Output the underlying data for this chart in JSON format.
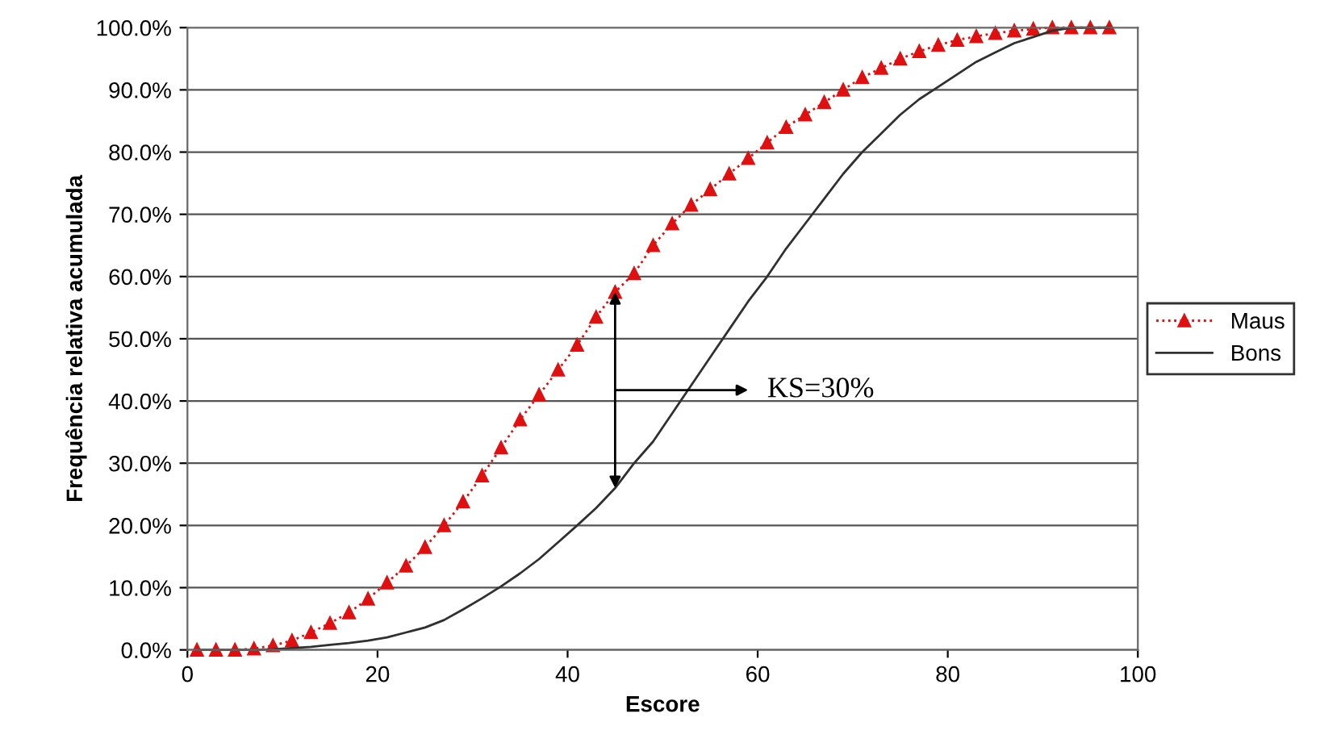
{
  "chart_data": {
    "type": "line",
    "xlabel": "Escore",
    "ylabel": "Frequência relativa acumulada",
    "x": [
      1,
      3,
      5,
      7,
      9,
      11,
      13,
      15,
      17,
      19,
      21,
      23,
      25,
      27,
      29,
      31,
      33,
      35,
      37,
      39,
      41,
      43,
      45,
      47,
      49,
      51,
      53,
      55,
      57,
      59,
      61,
      63,
      65,
      67,
      69,
      71,
      73,
      75,
      77,
      79,
      81,
      83,
      85,
      87,
      89,
      91,
      93,
      95,
      97
    ],
    "series": [
      {
        "name": "Maus",
        "color": "#e01010",
        "marker": "triangle",
        "line_style": "dotted",
        "values": [
          0,
          0,
          0,
          0.2,
          0.7,
          1.5,
          2.8,
          4.3,
          6,
          8.2,
          10.8,
          13.5,
          16.5,
          20,
          23.8,
          28,
          32.5,
          37,
          41,
          45,
          49,
          53.5,
          57.5,
          60.5,
          65,
          68.5,
          71.5,
          74,
          76.5,
          79,
          81.5,
          84,
          86,
          88,
          90,
          92,
          93.5,
          95,
          96.2,
          97.2,
          98,
          98.6,
          99.1,
          99.5,
          99.8,
          100,
          100,
          100,
          100
        ]
      },
      {
        "name": "Bons",
        "color": "#303030",
        "marker": "none",
        "line_style": "solid",
        "values": [
          0,
          0,
          0,
          0,
          0.1,
          0.3,
          0.5,
          0.8,
          1.1,
          1.5,
          2,
          2.8,
          3.6,
          4.8,
          6.5,
          8.3,
          10.2,
          12.3,
          14.6,
          17.3,
          20,
          22.8,
          26,
          30,
          33.5,
          38,
          42.5,
          47,
          51.5,
          56,
          60,
          64.5,
          68.5,
          72.5,
          76.5,
          80,
          83,
          86,
          88.5,
          90.5,
          92.5,
          94.5,
          96,
          97.5,
          98.5,
          99.5,
          100,
          100,
          100
        ]
      }
    ],
    "xlim": [
      0,
      100
    ],
    "xticks": [
      0,
      20,
      40,
      60,
      80,
      100
    ],
    "ylim": [
      0,
      100
    ],
    "yticks": [
      {
        "value": 0,
        "label": "0.0%"
      },
      {
        "value": 10,
        "label": "10.0%"
      },
      {
        "value": 20,
        "label": "20.0%"
      },
      {
        "value": 30,
        "label": "30.0%"
      },
      {
        "value": 40,
        "label": "40.0%"
      },
      {
        "value": 50,
        "label": "50.0%"
      },
      {
        "value": 60,
        "label": "60.0%"
      },
      {
        "value": 70,
        "label": "70.0%"
      },
      {
        "value": 80,
        "label": "80.0%"
      },
      {
        "value": 90,
        "label": "90.0%"
      },
      {
        "value": 100,
        "label": "100.0%"
      }
    ],
    "grid": "y",
    "legend": "right",
    "annotations": [
      "KS=30%"
    ]
  }
}
